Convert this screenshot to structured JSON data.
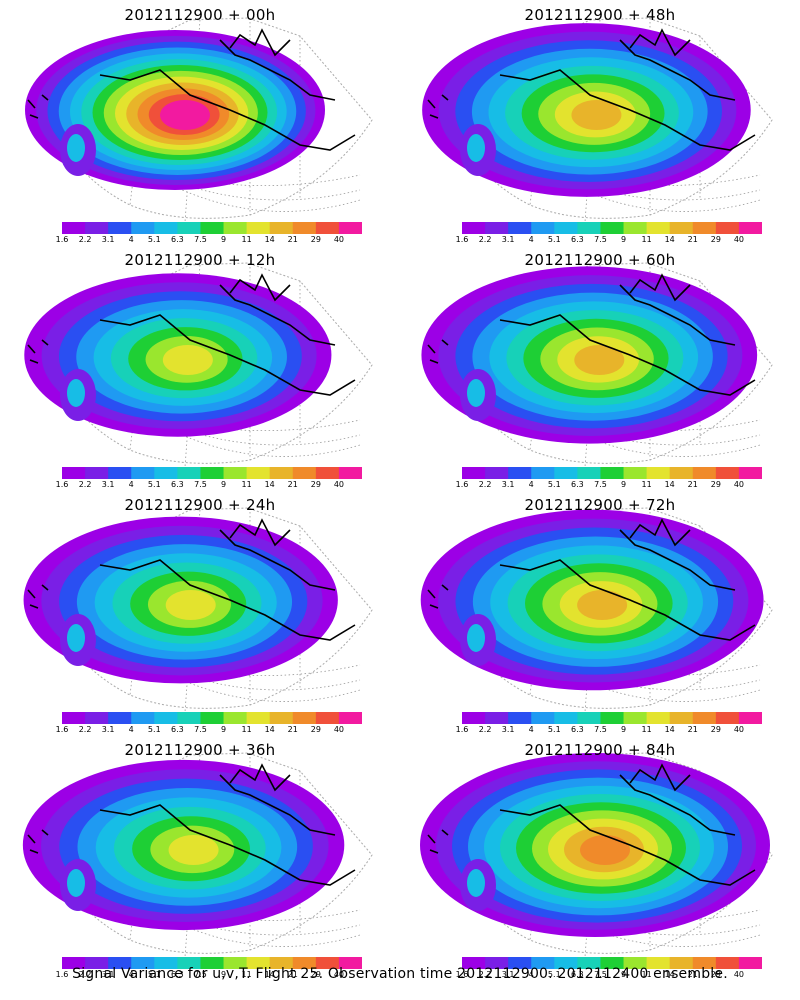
{
  "footer": "Signal Variance for u,v,T. Flight 25. Observation time 2012112900. 2012112400 ensemble.",
  "colorbar": {
    "labels": [
      "1.6",
      "2.2",
      "3.1",
      "4",
      "5.1",
      "6.3",
      "7.5",
      "9",
      "11",
      "14",
      "21",
      "29",
      "40"
    ],
    "colors": [
      "#9c00e6",
      "#7a1fe6",
      "#2a4ff2",
      "#1f9af2",
      "#17bde6",
      "#17d1b8",
      "#1ecf35",
      "#9ae62e",
      "#e3e32e",
      "#e8b42a",
      "#f08a2a",
      "#f0503a",
      "#f21aa0"
    ]
  },
  "chart_data": {
    "type": "heatmap",
    "variable": "Signal Variance for u,v,T",
    "flight": "Flight 25",
    "observation_time": "2012112900",
    "ensemble": "2012112400",
    "levels": [
      1.6,
      2.2,
      3.1,
      4,
      5.1,
      6.3,
      7.5,
      9,
      11,
      14,
      21,
      29,
      40
    ],
    "panels": [
      {
        "title": "2012112900 + 00h",
        "lead_hours": 0,
        "approx_max_level": 40
      },
      {
        "title": "2012112900 + 48h",
        "lead_hours": 48,
        "approx_max_level": 14
      },
      {
        "title": "2012112900 + 12h",
        "lead_hours": 12,
        "approx_max_level": 11
      },
      {
        "title": "2012112900 + 60h",
        "lead_hours": 60,
        "approx_max_level": 14
      },
      {
        "title": "2012112900 + 24h",
        "lead_hours": 24,
        "approx_max_level": 11
      },
      {
        "title": "2012112900 + 72h",
        "lead_hours": 72,
        "approx_max_level": 14
      },
      {
        "title": "2012112900 + 36h",
        "lead_hours": 36,
        "approx_max_level": 11
      },
      {
        "title": "2012112900 + 84h",
        "lead_hours": 84,
        "approx_max_level": 21
      }
    ]
  }
}
